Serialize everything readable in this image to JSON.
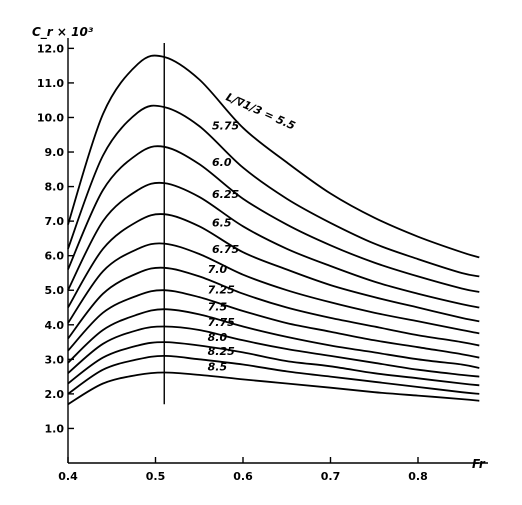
{
  "chart_data": {
    "type": "line",
    "xlabel": "Fr",
    "ylabel": "C_r × 10³",
    "x_range": [
      0.4,
      0.88
    ],
    "y_range": [
      0,
      12.3
    ],
    "x_ticks": [
      {
        "value": 0.4,
        "label": "0.4"
      },
      {
        "value": 0.5,
        "label": "0.5"
      },
      {
        "value": 0.6,
        "label": "0.6"
      },
      {
        "value": 0.7,
        "label": "0.7"
      },
      {
        "value": 0.8,
        "label": "0.8"
      }
    ],
    "y_ticks": [
      {
        "value": 1.0,
        "label": "1.0"
      },
      {
        "value": 2.0,
        "label": "2.0"
      },
      {
        "value": 3.0,
        "label": "3.0"
      },
      {
        "value": 4.0,
        "label": "4.0"
      },
      {
        "value": 5.0,
        "label": "5.0"
      },
      {
        "value": 6.0,
        "label": "6.0"
      },
      {
        "value": 7.0,
        "label": "7.0"
      },
      {
        "value": 8.0,
        "label": "8.0"
      },
      {
        "value": 9.0,
        "label": "9.0"
      },
      {
        "value": 10.0,
        "label": "10.0"
      },
      {
        "value": 11.0,
        "label": "11.0"
      },
      {
        "value": 12.0,
        "label": "12.0"
      }
    ],
    "reference_line_x": 0.51,
    "grid": false,
    "x": [
      0.4,
      0.44,
      0.48,
      0.51,
      0.55,
      0.6,
      0.65,
      0.7,
      0.75,
      0.8,
      0.85,
      0.87
    ],
    "series": [
      {
        "name": "L/∇1/3 = 5.5",
        "label_value": 0.575,
        "values": [
          6.9,
          10.1,
          11.55,
          11.75,
          11.1,
          9.7,
          8.7,
          7.8,
          7.1,
          6.55,
          6.1,
          5.95
        ]
      },
      {
        "name": "5.75",
        "label_value": 0.56,
        "values": [
          6.2,
          8.9,
          10.15,
          10.3,
          9.75,
          8.55,
          7.65,
          6.95,
          6.35,
          5.9,
          5.5,
          5.4
        ]
      },
      {
        "name": "6.0",
        "label_value": 0.56,
        "values": [
          5.6,
          7.9,
          8.95,
          9.15,
          8.65,
          7.65,
          6.9,
          6.3,
          5.8,
          5.4,
          5.05,
          4.95
        ]
      },
      {
        "name": "6.25",
        "label_value": 0.56,
        "values": [
          5.0,
          7.0,
          7.9,
          8.1,
          7.7,
          6.85,
          6.2,
          5.7,
          5.25,
          4.9,
          4.6,
          4.5
        ]
      },
      {
        "name": "6.5",
        "label_value": 0.56,
        "values": [
          4.5,
          6.2,
          7.0,
          7.2,
          6.85,
          6.1,
          5.6,
          5.15,
          4.8,
          4.5,
          4.2,
          4.1
        ]
      },
      {
        "name": "6.75",
        "label_value": 0.56,
        "values": [
          4.05,
          5.55,
          6.2,
          6.35,
          6.05,
          5.45,
          5.0,
          4.65,
          4.35,
          4.1,
          3.85,
          3.75
        ]
      },
      {
        "name": "7.0",
        "label_value": 0.555,
        "values": [
          3.6,
          4.9,
          5.5,
          5.65,
          5.4,
          4.9,
          4.5,
          4.2,
          3.95,
          3.7,
          3.5,
          3.4
        ]
      },
      {
        "name": "7.25",
        "label_value": 0.555,
        "values": [
          3.25,
          4.35,
          4.85,
          5.0,
          4.8,
          4.4,
          4.05,
          3.8,
          3.55,
          3.35,
          3.15,
          3.05
        ]
      },
      {
        "name": "7.5",
        "label_value": 0.555,
        "values": [
          2.9,
          3.85,
          4.3,
          4.45,
          4.3,
          3.95,
          3.65,
          3.4,
          3.2,
          3.0,
          2.85,
          2.75
        ]
      },
      {
        "name": "7.75",
        "label_value": 0.555,
        "values": [
          2.6,
          3.45,
          3.85,
          3.95,
          3.85,
          3.55,
          3.3,
          3.1,
          2.9,
          2.7,
          2.55,
          2.5
        ]
      },
      {
        "name": "8.0",
        "label_value": 0.555,
        "values": [
          2.3,
          3.05,
          3.4,
          3.5,
          3.4,
          3.2,
          2.95,
          2.8,
          2.6,
          2.45,
          2.3,
          2.25
        ]
      },
      {
        "name": "8.25",
        "label_value": 0.555,
        "values": [
          2.0,
          2.7,
          3.0,
          3.1,
          3.0,
          2.85,
          2.65,
          2.5,
          2.35,
          2.2,
          2.05,
          2.0
        ]
      },
      {
        "name": "8.5",
        "label_value": 0.555,
        "values": [
          1.7,
          2.3,
          2.55,
          2.62,
          2.55,
          2.42,
          2.3,
          2.18,
          2.05,
          1.95,
          1.85,
          1.8
        ]
      }
    ]
  }
}
